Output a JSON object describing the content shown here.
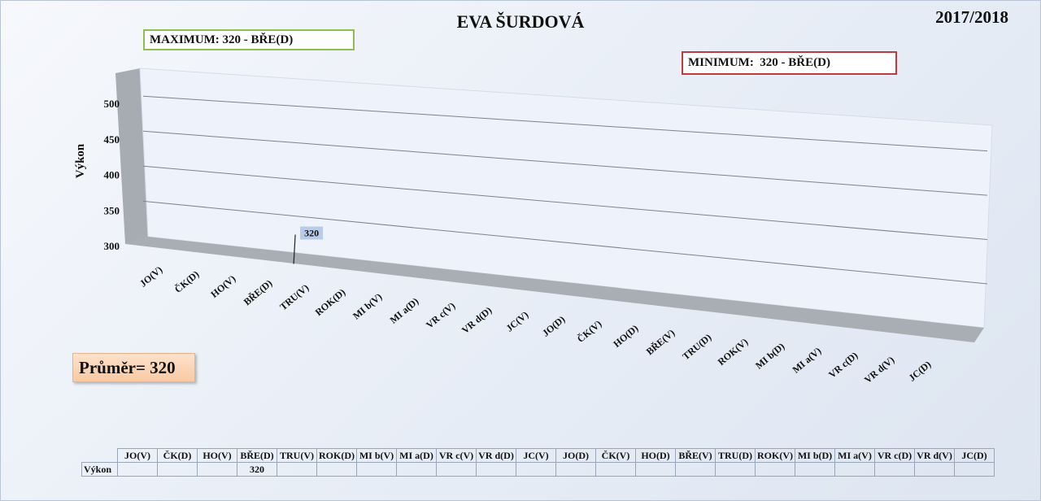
{
  "title": "EVA ŠURDOVÁ",
  "season": "2017/2018",
  "maximum_label": "MAXIMUM: 320 - BŘE(D)",
  "minimum_label": "MINIMUM:  320 - BŘE(D)",
  "average_label": "Průměr= 320",
  "chart_data": {
    "type": "bar",
    "title": "EVA ŠURDOVÁ",
    "ylabel": "Výkon",
    "xlabel": "",
    "ylim": [
      300,
      500
    ],
    "yticks": [
      500,
      450,
      400,
      350,
      300
    ],
    "categories": [
      "JO(V)",
      "ČK(D)",
      "HO(V)",
      "BŘE(D)",
      "TRU(V)",
      "ROK(D)",
      "MI b(V)",
      "MI a(D)",
      "VR c(V)",
      "VR d(D)",
      "JC(V)",
      "JO(D)",
      "ČK(V)",
      "HO(D)",
      "BŘE(V)",
      "TRU(D)",
      "ROK(V)",
      "MI b(D)",
      "MI a(V)",
      "VR c(D)",
      "VR d(V)",
      "JC(D)"
    ],
    "series": [
      {
        "name": "Výkon",
        "values": [
          null,
          null,
          null,
          320,
          null,
          null,
          null,
          null,
          null,
          null,
          null,
          null,
          null,
          null,
          null,
          null,
          null,
          null,
          null,
          null,
          null,
          null
        ]
      }
    ],
    "grid": true,
    "legend": "none"
  },
  "table": {
    "row_label": "Výkon"
  }
}
